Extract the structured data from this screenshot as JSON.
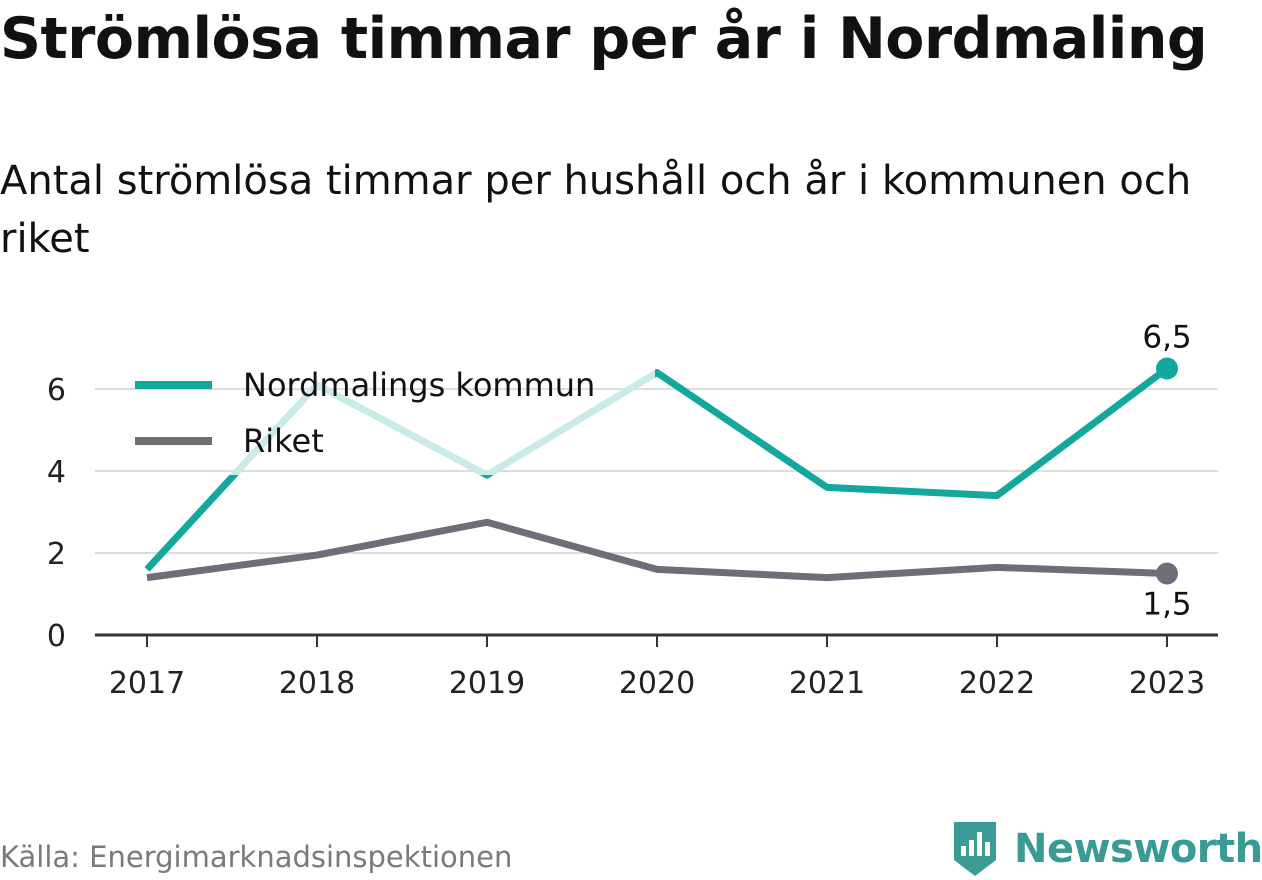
{
  "header": {
    "title": "Strömlösa timmar per år i Nordmaling",
    "subtitle": "Antal strömlösa timmar per hushåll och år i kommunen och riket"
  },
  "footer": {
    "source": "Källa: Energimarknadsinspektionen",
    "brand": "Newsworthy",
    "brand_icon": "bar-chart-badge-icon"
  },
  "colors": {
    "kommun": "#13a89e",
    "kommun_faded": "#c9ebe8",
    "riket": "#6e6e78",
    "grid": "#dddddd",
    "axis": "#333333",
    "brand": "#3a9a96"
  },
  "chart_data": {
    "type": "line",
    "title": "Strömlösa timmar per år i Nordmaling",
    "subtitle": "Antal strömlösa timmar per hushåll och år i kommunen och riket",
    "xlabel": "",
    "ylabel": "",
    "x": [
      "2017",
      "2018",
      "2019",
      "2020",
      "2021",
      "2022",
      "2023"
    ],
    "ylim": [
      0,
      7
    ],
    "yticks": [
      0,
      2,
      4,
      6
    ],
    "grid": true,
    "legend_placement": "top-left",
    "series": [
      {
        "name": "Nordmalings kommun",
        "values": [
          1.6,
          6.1,
          3.9,
          6.4,
          3.6,
          3.4,
          6.5
        ],
        "end_label": "6,5"
      },
      {
        "name": "Riket",
        "values": [
          1.4,
          1.95,
          2.75,
          1.6,
          1.4,
          1.65,
          1.5
        ],
        "end_label": "1,5"
      }
    ]
  }
}
